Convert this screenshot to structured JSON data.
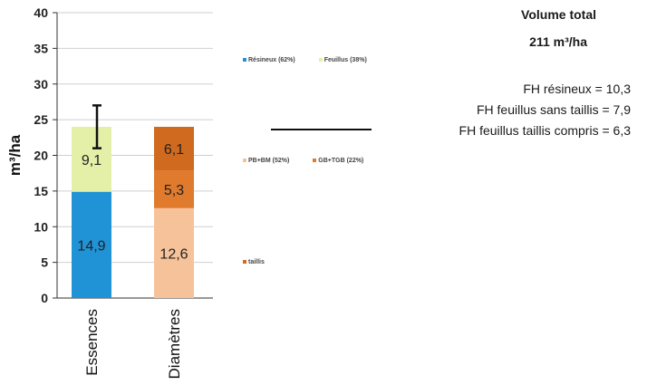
{
  "chart_data": {
    "type": "bar",
    "stacked": true,
    "ylabel": "m³/ha",
    "ylim": [
      0,
      40
    ],
    "yticks": [
      0,
      5,
      10,
      15,
      20,
      25,
      30,
      35,
      40
    ],
    "grid": true,
    "categories": [
      "Essences",
      "Diamètres"
    ],
    "series": [
      {
        "name": "Résineux (62%)",
        "color": "#1f93d6",
        "values": [
          14.9,
          0
        ],
        "labels": [
          "14,9",
          ""
        ]
      },
      {
        "name": "Feuillus (38%)",
        "color": "#e4f0a8",
        "values": [
          9.1,
          0
        ],
        "labels": [
          "9,1",
          ""
        ]
      },
      {
        "name": "PB+BM (52%)",
        "color": "#f6c29a",
        "values": [
          0,
          12.6
        ],
        "labels": [
          "",
          "12,6"
        ]
      },
      {
        "name": "GB+TGB (22%)",
        "color": "#e07a2c",
        "values": [
          0,
          5.3
        ],
        "labels": [
          "",
          "5,3"
        ]
      },
      {
        "name": "taillis",
        "color": "#cf6a1e",
        "values": [
          0,
          6.1
        ],
        "labels": [
          "",
          "6,1"
        ]
      }
    ],
    "error_bar": {
      "category": "Essences",
      "low": 21.0,
      "high": 27.0
    }
  },
  "legend": {
    "group1": [
      {
        "label": "Résineux (62%)",
        "color": "#1f93d6"
      },
      {
        "label": "Feuillus (38%)",
        "color": "#e4f0a8"
      }
    ],
    "group2": [
      {
        "label": "PB+BM (52%)",
        "color": "#f6c29a"
      },
      {
        "label": "GB+TGB (22%)",
        "color": "#e07a2c"
      }
    ],
    "group3": [
      {
        "label": "taillis",
        "color": "#cf6a1e"
      }
    ]
  },
  "info": {
    "title": "Volume total",
    "total": "211 m³/ha",
    "lines": [
      "FH résineux = 10,3",
      "FH feuillus sans taillis = 7,9",
      "FH feuillus taillis compris = 6,3"
    ]
  }
}
